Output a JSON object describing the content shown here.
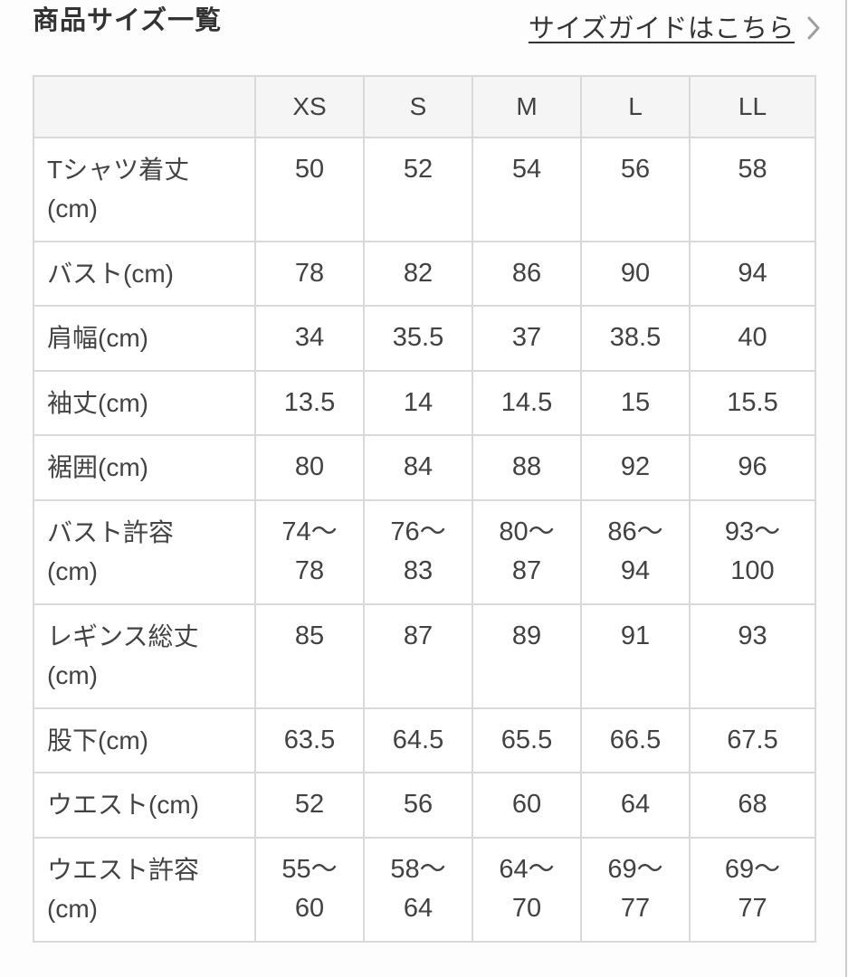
{
  "header": {
    "title": "商品サイズ一覧",
    "size_guide_link_label": "サイズガイドはこちら"
  },
  "table": {
    "size_columns": [
      "XS",
      "S",
      "M",
      "L",
      "LL"
    ],
    "rows": [
      {
        "label": "Tシャツ着丈",
        "unit": "(cm)",
        "unit_on_new_line": true,
        "values": [
          "50",
          "52",
          "54",
          "56",
          "58"
        ]
      },
      {
        "label": "バスト",
        "unit": "(cm)",
        "unit_on_new_line": false,
        "values": [
          "78",
          "82",
          "86",
          "90",
          "94"
        ]
      },
      {
        "label": "肩幅",
        "unit": "(cm)",
        "unit_on_new_line": false,
        "values": [
          "34",
          "35.5",
          "37",
          "38.5",
          "40"
        ]
      },
      {
        "label": "袖丈",
        "unit": "(cm)",
        "unit_on_new_line": false,
        "values": [
          "13.5",
          "14",
          "14.5",
          "15",
          "15.5"
        ]
      },
      {
        "label": "裾囲",
        "unit": "(cm)",
        "unit_on_new_line": false,
        "values": [
          "80",
          "84",
          "88",
          "92",
          "96"
        ]
      },
      {
        "label": "バスト許容",
        "unit": "(cm)",
        "unit_on_new_line": true,
        "values": [
          "74〜78",
          "76〜83",
          "80〜87",
          "86〜94",
          "93〜100"
        ],
        "values_wrap": true
      },
      {
        "label": "レギンス総丈",
        "unit": "(cm)",
        "unit_on_new_line": true,
        "values": [
          "85",
          "87",
          "89",
          "91",
          "93"
        ]
      },
      {
        "label": "股下",
        "unit": "(cm)",
        "unit_on_new_line": false,
        "values": [
          "63.5",
          "64.5",
          "65.5",
          "66.5",
          "67.5"
        ]
      },
      {
        "label": "ウエスト",
        "unit": "(cm)",
        "unit_on_new_line": false,
        "values": [
          "52",
          "56",
          "60",
          "64",
          "68"
        ]
      },
      {
        "label": "ウエスト許容",
        "unit": "(cm)",
        "unit_on_new_line": true,
        "values": [
          "55〜60",
          "58〜64",
          "64〜70",
          "69〜77",
          "69〜77"
        ],
        "values_wrap": true
      }
    ]
  },
  "colors": {
    "header_row_bg": "#f5f5f5",
    "table_border": "#d9d9d9",
    "text": "#424242",
    "title_text": "#333333",
    "chevron": "#9e9e9e",
    "right_edge_line": "#cccccc"
  }
}
